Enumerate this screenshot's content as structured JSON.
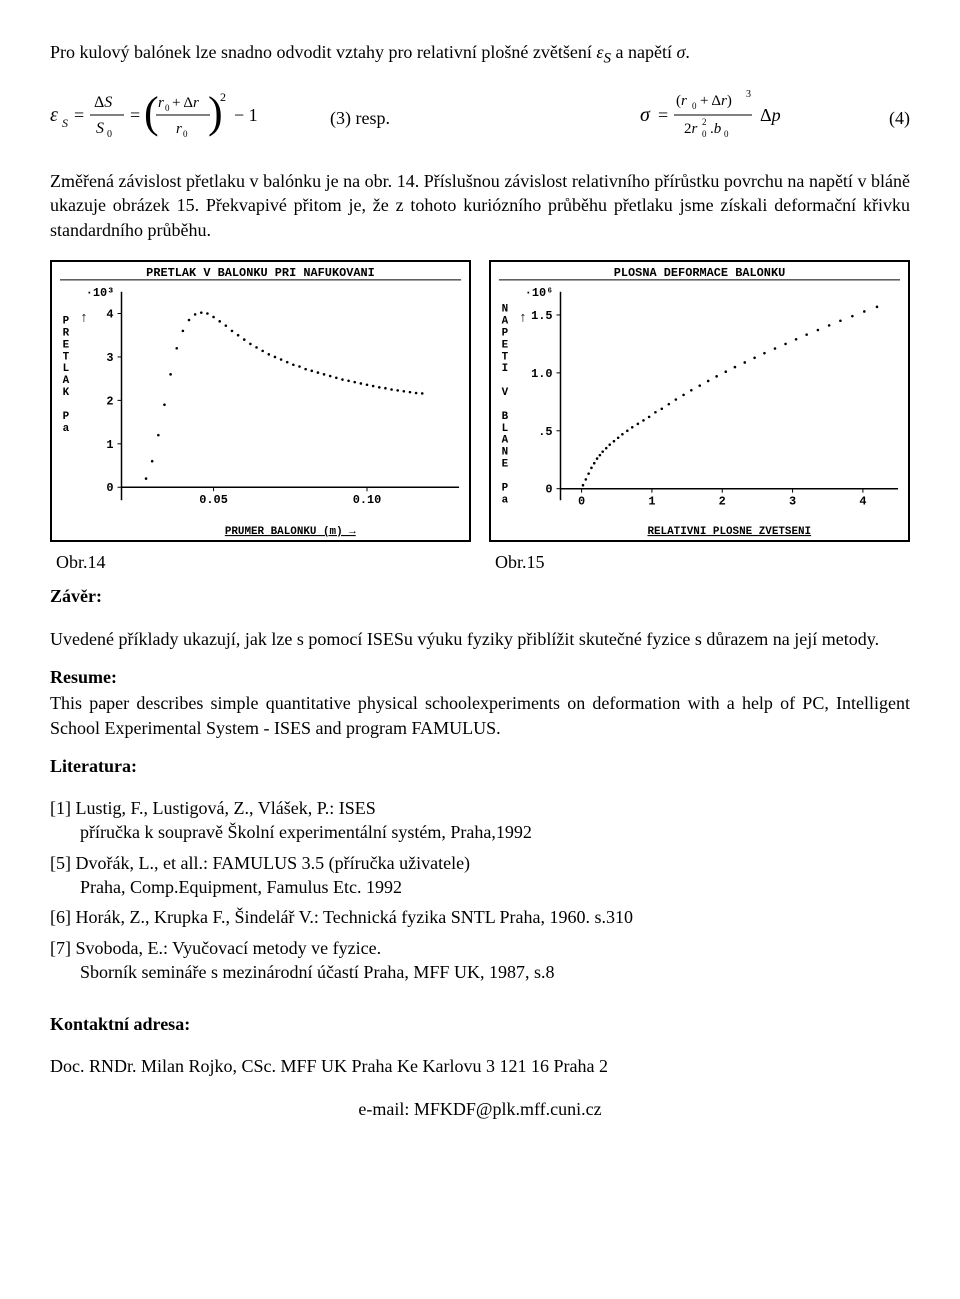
{
  "intro": "Pro kulový balónek lze snadno odvodit vztahy pro relativní plošné zvětšení ε_S a napětí σ.",
  "eq3_lhs": "ε",
  "eq3_sub": "S",
  "eq3_mid": " = ΔS / S₀ = ((r₀ + Δr)/r₀)² − 1",
  "eq3_label": "(3)     resp.",
  "eq4_expr": "σ = (r₀ + Δr)³ / (2r₀²·b₀) · Δp",
  "eq4_label": "(4)",
  "para2": "Změřená závislost přetlaku v balónku je na obr. 14. Příslušnou závislost relativního přírůstku povrchu na napětí v bláně ukazuje obrázek 15. Překvapivé přitom je, že z tohoto kuriózního průběhu přetlaku jsme získali deformační křivku standardního průběhu.",
  "chart_left": {
    "type": "scatter",
    "title": "PRETLAK V BALONKU PRI NAFUKOVANI",
    "y_exponent": "·10³",
    "y_axis_label_vertical": "↑ PRETLAK Pa",
    "x_axis_label": "PRUMER BALONKU (m) →",
    "xlim": [
      0.02,
      0.13
    ],
    "xticks": [
      0.05,
      0.1
    ],
    "xtick_labels": [
      "0.05",
      "0.10"
    ],
    "ylim": [
      -0.3,
      4.5
    ],
    "yticks": [
      0,
      1,
      2,
      3,
      4
    ],
    "ytick_labels": [
      "0",
      "1",
      "2",
      "3",
      "4"
    ],
    "marker_size": 1.3,
    "marker_color": "#000000",
    "background_color": "#ffffff",
    "axis_color": "#000000",
    "font": "Courier",
    "title_fontsize": 12,
    "label_fontsize": 11,
    "data": [
      [
        0.028,
        0.2
      ],
      [
        0.03,
        0.6
      ],
      [
        0.032,
        1.2
      ],
      [
        0.034,
        1.9
      ],
      [
        0.036,
        2.6
      ],
      [
        0.038,
        3.2
      ],
      [
        0.04,
        3.6
      ],
      [
        0.042,
        3.85
      ],
      [
        0.044,
        3.98
      ],
      [
        0.046,
        4.02
      ],
      [
        0.048,
        4.0
      ],
      [
        0.05,
        3.92
      ],
      [
        0.052,
        3.82
      ],
      [
        0.054,
        3.72
      ],
      [
        0.056,
        3.6
      ],
      [
        0.058,
        3.5
      ],
      [
        0.06,
        3.4
      ],
      [
        0.062,
        3.3
      ],
      [
        0.064,
        3.22
      ],
      [
        0.066,
        3.14
      ],
      [
        0.068,
        3.06
      ],
      [
        0.07,
        3.0
      ],
      [
        0.072,
        2.94
      ],
      [
        0.074,
        2.88
      ],
      [
        0.076,
        2.82
      ],
      [
        0.078,
        2.78
      ],
      [
        0.08,
        2.72
      ],
      [
        0.082,
        2.68
      ],
      [
        0.084,
        2.64
      ],
      [
        0.086,
        2.6
      ],
      [
        0.088,
        2.56
      ],
      [
        0.09,
        2.52
      ],
      [
        0.092,
        2.48
      ],
      [
        0.094,
        2.45
      ],
      [
        0.096,
        2.42
      ],
      [
        0.098,
        2.39
      ],
      [
        0.1,
        2.36
      ],
      [
        0.102,
        2.33
      ],
      [
        0.104,
        2.3
      ],
      [
        0.106,
        2.28
      ],
      [
        0.108,
        2.25
      ],
      [
        0.11,
        2.23
      ],
      [
        0.112,
        2.21
      ],
      [
        0.114,
        2.19
      ],
      [
        0.116,
        2.17
      ],
      [
        0.118,
        2.16
      ]
    ]
  },
  "chart_right": {
    "type": "scatter",
    "title": "PLOSNA DEFORMACE BALONKU",
    "y_exponent": "·10⁶",
    "y_axis_label_vertical": "↑ NAPETI V BLANE Pa",
    "x_axis_label": "RELATIVNI PLOSNE ZVETSENI",
    "xlim": [
      -0.3,
      4.5
    ],
    "xticks": [
      0,
      1,
      2,
      3,
      4
    ],
    "xtick_labels": [
      "0",
      "1",
      "2",
      "3",
      "4"
    ],
    "ylim": [
      -0.1,
      1.7
    ],
    "yticks": [
      0,
      0.5,
      1.0,
      1.5
    ],
    "ytick_labels": [
      "0",
      ".5",
      "1.0",
      "1.5"
    ],
    "marker_size": 1.3,
    "marker_color": "#000000",
    "background_color": "#ffffff",
    "axis_color": "#000000",
    "font": "Courier",
    "title_fontsize": 12,
    "label_fontsize": 11,
    "data": [
      [
        0.02,
        0.03
      ],
      [
        0.06,
        0.08
      ],
      [
        0.1,
        0.13
      ],
      [
        0.14,
        0.18
      ],
      [
        0.18,
        0.22
      ],
      [
        0.22,
        0.26
      ],
      [
        0.26,
        0.29
      ],
      [
        0.3,
        0.32
      ],
      [
        0.35,
        0.35
      ],
      [
        0.4,
        0.38
      ],
      [
        0.46,
        0.41
      ],
      [
        0.52,
        0.44
      ],
      [
        0.58,
        0.47
      ],
      [
        0.65,
        0.5
      ],
      [
        0.72,
        0.53
      ],
      [
        0.8,
        0.56
      ],
      [
        0.88,
        0.59
      ],
      [
        0.96,
        0.62
      ],
      [
        1.05,
        0.66
      ],
      [
        1.14,
        0.69
      ],
      [
        1.24,
        0.73
      ],
      [
        1.34,
        0.77
      ],
      [
        1.45,
        0.81
      ],
      [
        1.56,
        0.85
      ],
      [
        1.68,
        0.89
      ],
      [
        1.8,
        0.93
      ],
      [
        1.92,
        0.97
      ],
      [
        2.05,
        1.01
      ],
      [
        2.18,
        1.05
      ],
      [
        2.32,
        1.09
      ],
      [
        2.46,
        1.13
      ],
      [
        2.6,
        1.17
      ],
      [
        2.75,
        1.21
      ],
      [
        2.9,
        1.25
      ],
      [
        3.05,
        1.29
      ],
      [
        3.2,
        1.33
      ],
      [
        3.36,
        1.37
      ],
      [
        3.52,
        1.41
      ],
      [
        3.68,
        1.45
      ],
      [
        3.85,
        1.49
      ],
      [
        4.02,
        1.53
      ],
      [
        4.2,
        1.57
      ]
    ]
  },
  "caption_left": "Obr.14",
  "caption_right": "Obr.15",
  "zaver_title": "Závěr:",
  "zaver_text": "Uvedené příklady ukazují, jak lze s pomocí ISESu výuku fyziky přiblížit skutečné fyzice s důrazem na její metody.",
  "resume_title": "Resume:",
  "resume_text": "This paper describes simple quantitative physical schoolexperiments on deformation with a help of  PC, Intelligent School Experimental System - ISES and program FAMULUS.",
  "literatura_title": "Literatura:",
  "ref1_a": "[1] Lustig, F., Lustigová, Z., Vlášek, P.: ISES",
  "ref1_b": "příručka k soupravě Školní experimentální systém, Praha,1992",
  "ref5_a": "[5] Dvořák, L., et all.: FAMULUS 3.5 (příručka uživatele)",
  "ref5_b": "Praha, Comp.Equipment, Famulus Etc. 1992",
  "ref6": "[6] Horák, Z., Krupka F., Šindelář V.: Technická fyzika SNTL Praha, 1960. s.310",
  "ref7_a": "[7] Svoboda, E.: Vyučovací metody ve fyzice.",
  "ref7_b": "Sborník semináře s mezinárodní účastí Praha, MFF UK, 1987, s.8",
  "kontakt_title": "Kontaktní adresa:",
  "kontakt_line": "Doc. RNDr. Milan Rojko, CSc. MFF UK Praha Ke Karlovu 3    121 16 Praha 2",
  "email_line": "e-mail:  MFKDF@plk.mff.cuni.cz"
}
